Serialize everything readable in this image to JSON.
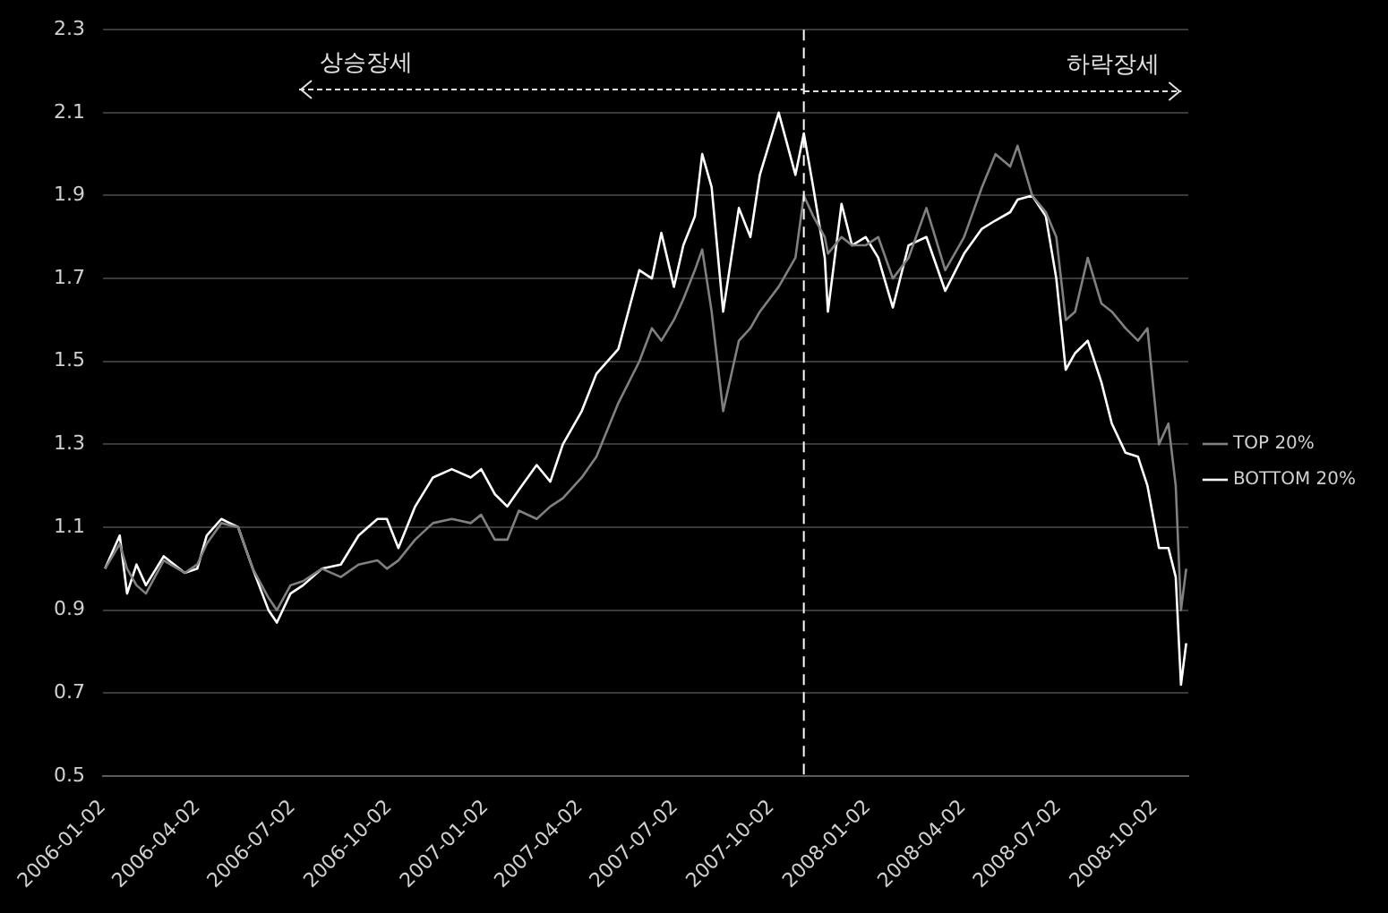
{
  "chart_data": {
    "type": "line",
    "x": [
      "2006-01-04",
      "2006-01-18",
      "2006-01-25",
      "2006-02-03",
      "2006-02-12",
      "2006-03-01",
      "2006-03-21",
      "2006-04-02",
      "2006-04-11",
      "2006-04-25",
      "2006-05-11",
      "2006-05-25",
      "2006-06-09",
      "2006-06-17",
      "2006-06-30",
      "2006-07-12",
      "2006-07-30",
      "2006-08-17",
      "2006-09-03",
      "2006-09-21",
      "2006-09-30",
      "2006-10-11",
      "2006-10-27",
      "2006-11-13",
      "2006-12-01",
      "2006-12-19",
      "2006-12-29",
      "2007-01-11",
      "2007-01-23",
      "2007-02-03",
      "2007-02-20",
      "2007-03-05",
      "2007-03-17",
      "2007-04-04",
      "2007-04-18",
      "2007-05-09",
      "2007-05-29",
      "2007-06-10",
      "2007-06-19",
      "2007-07-01",
      "2007-07-10",
      "2007-07-21",
      "2007-07-28",
      "2007-08-06",
      "2007-08-17",
      "2007-09-01",
      "2007-09-12",
      "2007-09-21",
      "2007-10-09",
      "2007-10-25",
      "2007-11-02",
      "2007-11-11",
      "2007-11-22",
      "2007-11-25",
      "2007-12-08",
      "2007-12-18",
      "2007-12-31",
      "2008-01-12",
      "2008-01-26",
      "2008-02-10",
      "2008-02-27",
      "2008-03-16",
      "2008-04-03",
      "2008-04-20",
      "2008-05-03",
      "2008-05-17",
      "2008-05-24",
      "2008-06-07",
      "2008-06-20",
      "2008-06-30",
      "2008-07-09",
      "2008-07-18",
      "2008-07-30",
      "2008-08-12",
      "2008-08-22",
      "2008-09-04",
      "2008-09-16",
      "2008-09-25",
      "2008-10-06",
      "2008-10-15",
      "2008-10-22",
      "2008-10-27",
      "2008-11-01"
    ],
    "series": [
      {
        "name": "TOP 20%",
        "color": "#808080",
        "values": [
          1.0,
          1.06,
          1.0,
          0.96,
          0.94,
          1.02,
          0.99,
          1.01,
          1.06,
          1.11,
          1.1,
          1.0,
          0.93,
          0.9,
          0.96,
          0.97,
          1.0,
          0.98,
          1.01,
          1.02,
          1.0,
          1.02,
          1.07,
          1.11,
          1.12,
          1.11,
          1.13,
          1.07,
          1.07,
          1.14,
          1.12,
          1.15,
          1.17,
          1.22,
          1.27,
          1.4,
          1.5,
          1.58,
          1.55,
          1.6,
          1.65,
          1.72,
          1.77,
          1.62,
          1.38,
          1.55,
          1.58,
          1.62,
          1.68,
          1.75,
          1.9,
          1.85,
          1.8,
          1.76,
          1.8,
          1.78,
          1.78,
          1.8,
          1.7,
          1.75,
          1.87,
          1.72,
          1.8,
          1.92,
          2.0,
          1.97,
          2.02,
          1.9,
          1.86,
          1.8,
          1.6,
          1.62,
          1.75,
          1.64,
          1.62,
          1.58,
          1.55,
          1.58,
          1.3,
          1.35,
          1.2,
          0.9,
          1.0
        ]
      },
      {
        "name": "BOTTOM 20%",
        "color": "#ffffff",
        "values": [
          1.0,
          1.08,
          0.94,
          1.01,
          0.96,
          1.03,
          0.99,
          1.0,
          1.08,
          1.12,
          1.1,
          1.0,
          0.9,
          0.87,
          0.94,
          0.96,
          1.0,
          1.01,
          1.08,
          1.12,
          1.12,
          1.05,
          1.15,
          1.22,
          1.24,
          1.22,
          1.24,
          1.18,
          1.15,
          1.19,
          1.25,
          1.21,
          1.3,
          1.38,
          1.47,
          1.53,
          1.72,
          1.7,
          1.81,
          1.68,
          1.78,
          1.85,
          2.0,
          1.92,
          1.62,
          1.87,
          1.8,
          1.95,
          2.1,
          1.95,
          2.05,
          1.92,
          1.75,
          1.62,
          1.88,
          1.78,
          1.8,
          1.75,
          1.63,
          1.78,
          1.8,
          1.67,
          1.76,
          1.82,
          1.84,
          1.86,
          1.89,
          1.9,
          1.85,
          1.7,
          1.48,
          1.52,
          1.55,
          1.45,
          1.35,
          1.28,
          1.27,
          1.2,
          1.05,
          1.05,
          0.98,
          0.72,
          0.82
        ]
      }
    ],
    "xlim": [
      "2006-01-02",
      "2008-11-03"
    ],
    "xticks": [
      "2006-01-02",
      "2006-04-02",
      "2006-07-02",
      "2006-10-02",
      "2007-01-02",
      "2007-04-02",
      "2007-07-02",
      "2007-10-02",
      "2008-01-02",
      "2008-04-02",
      "2008-07-02",
      "2008-10-02"
    ],
    "ylim": [
      0.5,
      2.3
    ],
    "yticks": [
      0.5,
      0.7,
      0.9,
      1.1,
      1.3,
      1.5,
      1.7,
      1.9,
      2.1,
      2.3
    ],
    "grid": "y",
    "legend": "right",
    "marker": "none",
    "line_style": "solid",
    "ref_lines": [
      {
        "axis": "x",
        "value": "2007-11-02",
        "color": "#ffffff",
        "line_style": "dashed"
      }
    ],
    "annotations": [
      "상승장세",
      {
        "text": "하락장세",
        "x": "2007-11-02",
        "y": 2.15
      }
    ]
  }
}
